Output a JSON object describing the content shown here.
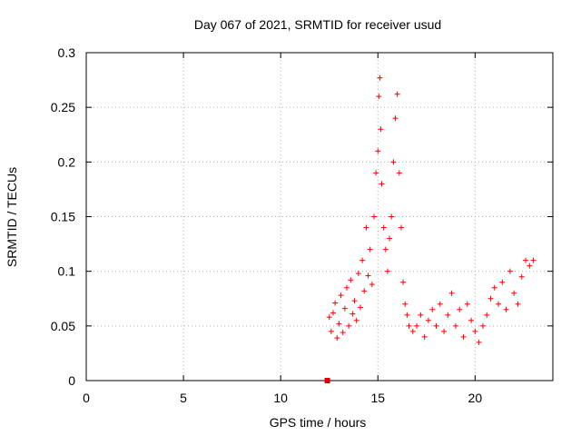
{
  "chart_data": {
    "type": "scatter",
    "title": "Day 067 of 2021, SRMTID for receiver usud",
    "xlabel": "GPS time / hours",
    "ylabel": "SRMTID / TECUs",
    "xlim": [
      0,
      24
    ],
    "ylim": [
      0,
      0.3
    ],
    "xticks": [
      "0",
      "5",
      "10",
      "15",
      "20"
    ],
    "xtick_values": [
      0,
      5,
      10,
      15,
      20
    ],
    "yticks": [
      "0",
      "0.05",
      "0.1",
      "0.15",
      "0.2",
      "0.25",
      "0.3"
    ],
    "ytick_values": [
      0,
      0.05,
      0.1,
      0.15,
      0.2,
      0.25,
      0.3
    ],
    "grid": true,
    "marker": "+",
    "marker_color": "#ff0000",
    "x_range_data": [
      12.4,
      23.0
    ],
    "series": [
      {
        "name": "SRMTID",
        "points": [
          [
            12.5,
            0.058
          ],
          [
            12.6,
            0.045
          ],
          [
            12.7,
            0.062
          ],
          [
            12.8,
            0.071
          ],
          [
            12.9,
            0.039
          ],
          [
            13.0,
            0.052
          ],
          [
            13.1,
            0.078
          ],
          [
            13.2,
            0.044
          ],
          [
            13.3,
            0.066
          ],
          [
            13.4,
            0.085
          ],
          [
            13.5,
            0.05
          ],
          [
            13.6,
            0.092
          ],
          [
            13.7,
            0.061
          ],
          [
            13.8,
            0.073
          ],
          [
            13.9,
            0.055
          ],
          [
            14.0,
            0.098
          ],
          [
            14.1,
            0.067
          ],
          [
            14.2,
            0.11
          ],
          [
            14.3,
            0.082
          ],
          [
            14.4,
            0.14
          ],
          [
            14.5,
            0.096
          ],
          [
            14.6,
            0.12
          ],
          [
            14.7,
            0.088
          ],
          [
            14.8,
            0.15
          ],
          [
            14.9,
            0.19
          ],
          [
            15.0,
            0.21
          ],
          [
            15.05,
            0.26
          ],
          [
            15.1,
            0.277
          ],
          [
            15.15,
            0.23
          ],
          [
            15.2,
            0.18
          ],
          [
            15.3,
            0.14
          ],
          [
            15.4,
            0.12
          ],
          [
            15.5,
            0.1
          ],
          [
            15.6,
            0.13
          ],
          [
            15.7,
            0.15
          ],
          [
            15.8,
            0.2
          ],
          [
            15.9,
            0.24
          ],
          [
            16.0,
            0.262
          ],
          [
            16.1,
            0.19
          ],
          [
            16.2,
            0.14
          ],
          [
            16.3,
            0.09
          ],
          [
            16.4,
            0.07
          ],
          [
            16.5,
            0.06
          ],
          [
            16.6,
            0.05
          ],
          [
            16.8,
            0.045
          ],
          [
            17.0,
            0.05
          ],
          [
            17.2,
            0.06
          ],
          [
            17.4,
            0.04
          ],
          [
            17.6,
            0.055
          ],
          [
            17.8,
            0.065
          ],
          [
            18.0,
            0.05
          ],
          [
            18.2,
            0.07
          ],
          [
            18.4,
            0.045
          ],
          [
            18.6,
            0.06
          ],
          [
            18.8,
            0.08
          ],
          [
            19.0,
            0.05
          ],
          [
            19.2,
            0.065
          ],
          [
            19.4,
            0.04
          ],
          [
            19.6,
            0.07
          ],
          [
            19.8,
            0.055
          ],
          [
            20.0,
            0.045
          ],
          [
            20.2,
            0.035
          ],
          [
            20.4,
            0.05
          ],
          [
            20.6,
            0.06
          ],
          [
            20.8,
            0.075
          ],
          [
            21.0,
            0.085
          ],
          [
            21.2,
            0.07
          ],
          [
            21.4,
            0.09
          ],
          [
            21.6,
            0.065
          ],
          [
            21.8,
            0.1
          ],
          [
            22.0,
            0.08
          ],
          [
            22.2,
            0.07
          ],
          [
            22.4,
            0.095
          ],
          [
            22.6,
            0.11
          ],
          [
            22.8,
            0.105
          ],
          [
            23.0,
            0.11
          ]
        ]
      }
    ],
    "annotations": [
      {
        "type": "square-marker",
        "x": 12.4,
        "y": 0.0,
        "color": "#dd0000"
      }
    ]
  }
}
